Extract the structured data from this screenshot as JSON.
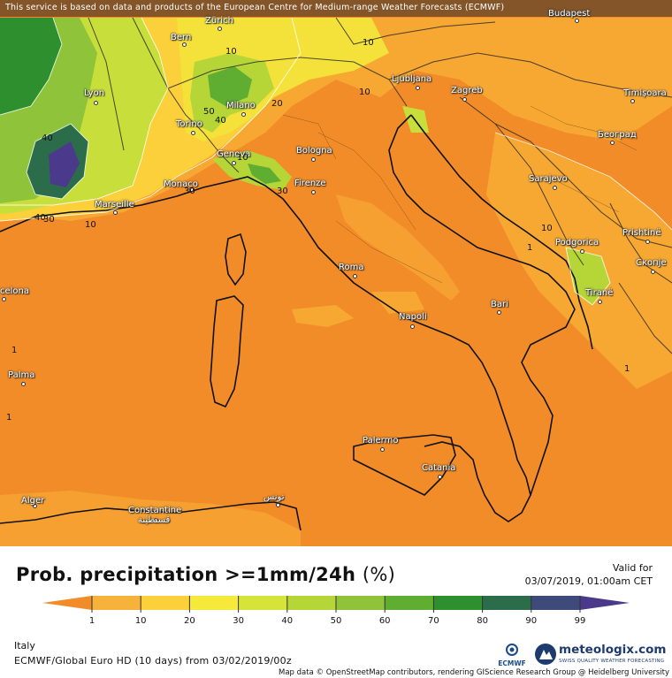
{
  "banner_text": "This service is based on data and products of the European Centre for Medium-range Weather Forecasts (ECMWF)",
  "attribution": "Map data © OpenStreetMap contributors, rendering GIScience Research Group @ Heidelberg University",
  "title": "Prob. precipitation >=1mm/24h",
  "title_unit": "(%)",
  "valid_label": "Valid for",
  "valid_time": "03/07/2019, 01:00am CET",
  "region": "Italy",
  "model_info": "ECMWF/Global Euro HD (10 days) from 03/02/2019/00z",
  "ecmwf_label": "ECMWF",
  "brand_name": "meteologix.com",
  "brand_tagline": "SWISS QUALITY WEATHER FORECASTING",
  "colorbar": {
    "ticks": [
      "1",
      "10",
      "20",
      "30",
      "40",
      "50",
      "60",
      "70",
      "80",
      "90",
      "99"
    ],
    "colors": [
      "#f28c28",
      "#f7b23b",
      "#fbd03a",
      "#f6e93a",
      "#d6e43a",
      "#b6d638",
      "#8fc43a",
      "#5fae32",
      "#2e8f2f",
      "#2b6d4a",
      "#3e4a7a",
      "#4b3a8c"
    ]
  },
  "cities": {
    "budapest": "Budapest",
    "bern": "Bern",
    "zurich": "Zürich",
    "lyon": "Lyon",
    "milano": "Milano",
    "torino": "Torino",
    "genova": "Genova",
    "bologna": "Bologna",
    "monaco": "Monaco",
    "marseille": "Marseille",
    "firenze": "Firenze",
    "ljubljana": "Ljubljana",
    "zagreb": "Zagreb",
    "timisoara": "Timișoara",
    "beograd": "Београд",
    "sarajevo": "Sarajevo",
    "podgorica": "Podgorica",
    "prishtine": "Prishtinë",
    "skopje": "Скопје",
    "tirane": "Tiranë",
    "roma": "Roma",
    "bari": "Bari",
    "napoli": "Napoli",
    "barcelona": "celona",
    "palma": "Palma",
    "palermo": "Palermo",
    "catania": "Catania",
    "alger": "Alger",
    "constantine": "Constantine",
    "constantine_ar": "قسنطينة",
    "tunis_ar": "تونس"
  },
  "contour_labels": [
    "10",
    "20",
    "10",
    "50",
    "40",
    "40",
    "10",
    "30",
    "30",
    "10",
    "40",
    "30",
    "10",
    "10",
    "1",
    "1",
    "1",
    "1"
  ]
}
